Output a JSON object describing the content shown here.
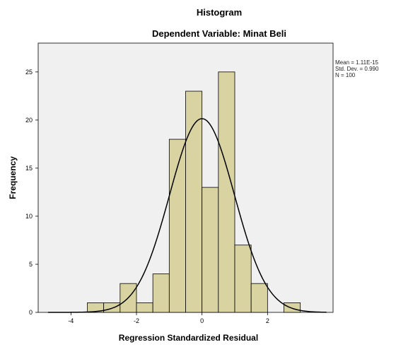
{
  "chart_data": {
    "type": "histogram",
    "title": "Histogram",
    "subtitle": "Dependent Variable: Minat Beli",
    "xlabel": "Regression Standardized Residual",
    "ylabel": "Frequency",
    "xlim": [
      -5,
      4
    ],
    "ylim": [
      0,
      28
    ],
    "x_ticks": [
      -4,
      -2,
      0,
      2
    ],
    "y_ticks": [
      0,
      5,
      10,
      15,
      20,
      25
    ],
    "bin_width": 0.5,
    "bins": [
      {
        "start": -3.5,
        "end": -3.0,
        "count": 1
      },
      {
        "start": -3.0,
        "end": -2.5,
        "count": 1
      },
      {
        "start": -2.5,
        "end": -2.0,
        "count": 3
      },
      {
        "start": -2.0,
        "end": -1.5,
        "count": 1
      },
      {
        "start": -1.5,
        "end": -1.0,
        "count": 4
      },
      {
        "start": -1.0,
        "end": -0.5,
        "count": 18
      },
      {
        "start": -0.5,
        "end": 0.0,
        "count": 23
      },
      {
        "start": 0.0,
        "end": 0.5,
        "count": 13
      },
      {
        "start": 0.5,
        "end": 1.0,
        "count": 25
      },
      {
        "start": 1.0,
        "end": 1.5,
        "count": 7
      },
      {
        "start": 1.5,
        "end": 2.0,
        "count": 3
      },
      {
        "start": 2.0,
        "end": 2.5,
        "count": 0
      },
      {
        "start": 2.5,
        "end": 3.0,
        "count": 1
      }
    ],
    "normal_curve": {
      "mean": 0.0,
      "std": 0.99,
      "n": 100
    },
    "bar_color": "#d9d3a1",
    "bar_stroke": "#000000",
    "plot_background": "#f0f0f0",
    "curve_color": "#000000",
    "grid": false,
    "stats_text": [
      "Mean = 1.11E-15",
      "Std. Dev. = 0.990",
      "N = 100"
    ]
  }
}
